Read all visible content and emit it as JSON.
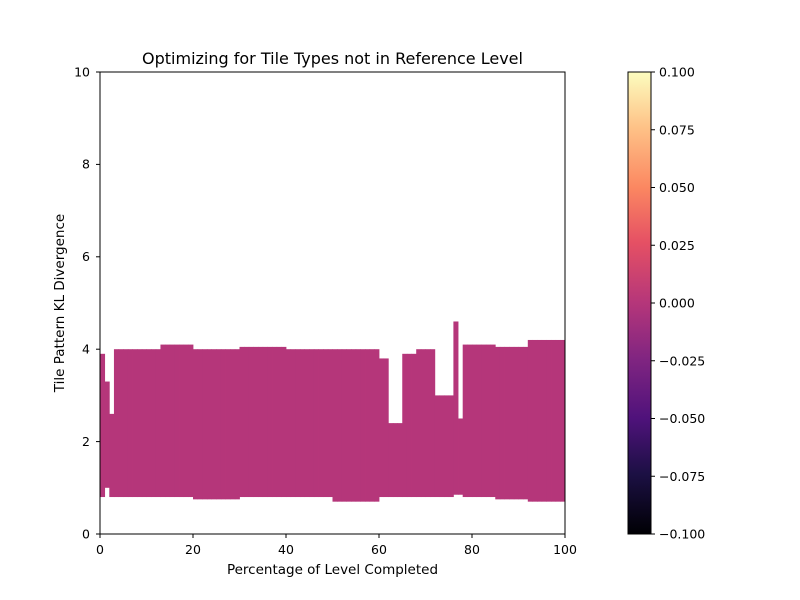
{
  "chart_data": {
    "type": "heatmap",
    "title": "Optimizing for Tile Types not in Reference Level",
    "xlabel": "Percentage of Level Completed",
    "ylabel": "Tile Pattern KL Divergence",
    "xlim": [
      0,
      100
    ],
    "ylim": [
      0,
      10
    ],
    "x_ticks": [
      "0",
      "20",
      "40",
      "60",
      "80",
      "100"
    ],
    "y_ticks": [
      "0",
      "2",
      "4",
      "6",
      "8",
      "10"
    ],
    "cell_value": 0.0,
    "cell_color": "#b5367a",
    "colormap": "magma",
    "colorbar": {
      "range": [
        -0.1,
        0.1
      ],
      "ticks": [
        "0.100",
        "0.075",
        "0.050",
        "0.025",
        "0.000",
        "−0.025",
        "−0.050",
        "−0.075",
        "−0.100"
      ]
    },
    "grid": false,
    "filled_region": {
      "x_bin_width": 1,
      "y_bin_height": 0.1,
      "columns": [
        {
          "x_start": 0,
          "x_end": 1,
          "y_min": 0.8,
          "y_max": 3.9
        },
        {
          "x_start": 1,
          "x_end": 2,
          "y_min": 1.0,
          "y_max": 3.3
        },
        {
          "x_start": 2,
          "x_end": 3,
          "y_min": 0.8,
          "y_max": 2.6
        },
        {
          "x_start": 3,
          "x_end": 8,
          "y_min": 0.8,
          "y_max": 4.0
        },
        {
          "x_start": 8,
          "x_end": 13,
          "y_min": 0.8,
          "y_max": 4.0
        },
        {
          "x_start": 13,
          "x_end": 20,
          "y_min": 0.8,
          "y_max": 4.1
        },
        {
          "x_start": 20,
          "x_end": 30,
          "y_min": 0.75,
          "y_max": 4.0
        },
        {
          "x_start": 30,
          "x_end": 40,
          "y_min": 0.8,
          "y_max": 4.05
        },
        {
          "x_start": 40,
          "x_end": 50,
          "y_min": 0.8,
          "y_max": 4.0
        },
        {
          "x_start": 50,
          "x_end": 60,
          "y_min": 0.7,
          "y_max": 4.0
        },
        {
          "x_start": 60,
          "x_end": 62,
          "y_min": 0.8,
          "y_max": 3.8
        },
        {
          "x_start": 62,
          "x_end": 65,
          "y_min": 0.8,
          "y_max": 2.4
        },
        {
          "x_start": 65,
          "x_end": 68,
          "y_min": 0.8,
          "y_max": 3.9
        },
        {
          "x_start": 68,
          "x_end": 72,
          "y_min": 0.8,
          "y_max": 4.0
        },
        {
          "x_start": 72,
          "x_end": 76,
          "y_min": 0.8,
          "y_max": 3.0
        },
        {
          "x_start": 76,
          "x_end": 77,
          "y_min": 0.85,
          "y_max": 4.6
        },
        {
          "x_start": 77,
          "x_end": 78,
          "y_min": 0.85,
          "y_max": 2.5
        },
        {
          "x_start": 78,
          "x_end": 85,
          "y_min": 0.8,
          "y_max": 4.1
        },
        {
          "x_start": 85,
          "x_end": 92,
          "y_min": 0.75,
          "y_max": 4.05
        },
        {
          "x_start": 92,
          "x_end": 100,
          "y_min": 0.7,
          "y_max": 4.2
        }
      ]
    }
  }
}
